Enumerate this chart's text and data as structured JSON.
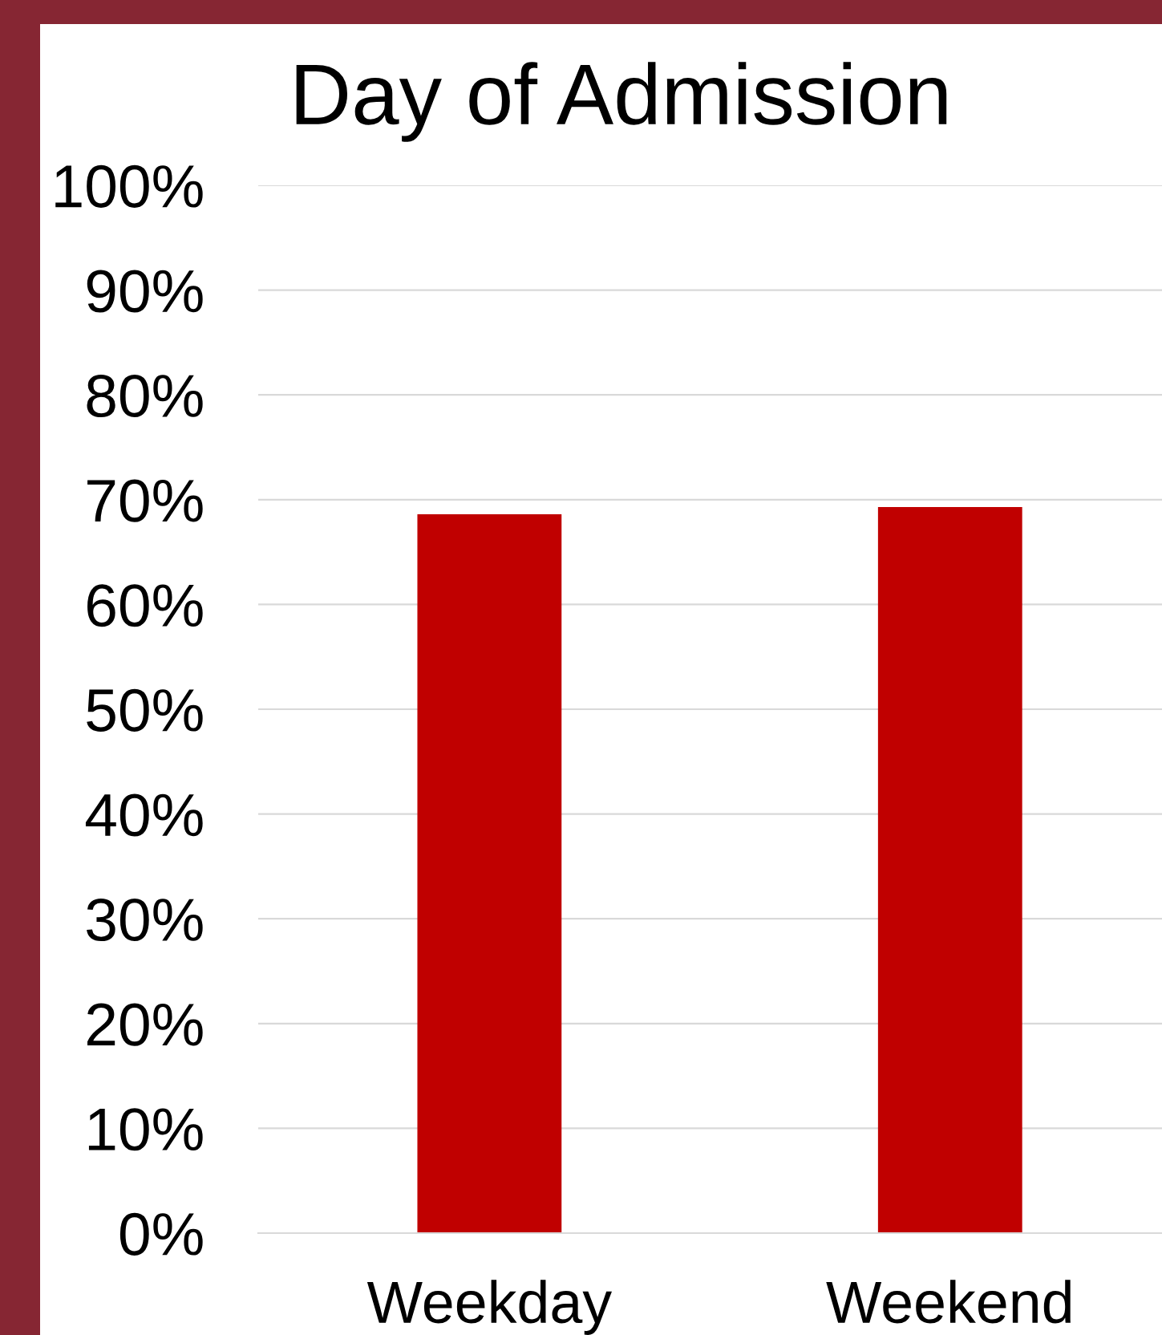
{
  "chart_data": {
    "type": "bar",
    "title": "Day of Admission",
    "categories": [
      "Weekday",
      "Weekend"
    ],
    "values": [
      68.6,
      69.3
    ],
    "color": "#c00000",
    "ylim": [
      0,
      100
    ],
    "yticks": [
      {
        "value": 0,
        "label": "0%"
      },
      {
        "value": 10,
        "label": "10%"
      },
      {
        "value": 20,
        "label": "20%"
      },
      {
        "value": 30,
        "label": "30%"
      },
      {
        "value": 40,
        "label": "40%"
      },
      {
        "value": 50,
        "label": "50%"
      },
      {
        "value": 60,
        "label": "60%"
      },
      {
        "value": 70,
        "label": "70%"
      },
      {
        "value": 80,
        "label": "80%"
      },
      {
        "value": 90,
        "label": "90%"
      },
      {
        "value": 100,
        "label": "100%"
      }
    ],
    "grid": "y",
    "legend": false
  }
}
